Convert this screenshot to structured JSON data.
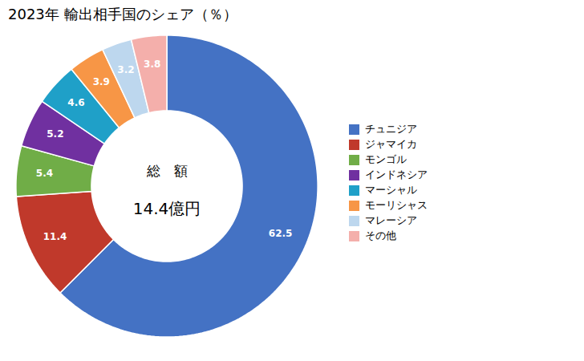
{
  "chart_data": {
    "type": "donut",
    "title": "2023年 輸出相手国のシェア（％）",
    "annotations": [
      "総　額",
      "14.4億円"
    ],
    "categories": [
      "チュニジア",
      "ジャマイカ",
      "モンゴル",
      "インドネシア",
      "マーシャル",
      "モーリシャス",
      "マレーシア",
      "その他"
    ],
    "values": [
      62.5,
      11.4,
      5.4,
      5.2,
      4.6,
      3.9,
      3.2,
      3.8
    ],
    "colors": [
      "#4472C4",
      "#C0392B",
      "#70AD47",
      "#7030A0",
      "#1FA0C8",
      "#F79646",
      "#BDD7EE",
      "#F4AFAB"
    ],
    "data_labels": true,
    "legend": "right"
  }
}
